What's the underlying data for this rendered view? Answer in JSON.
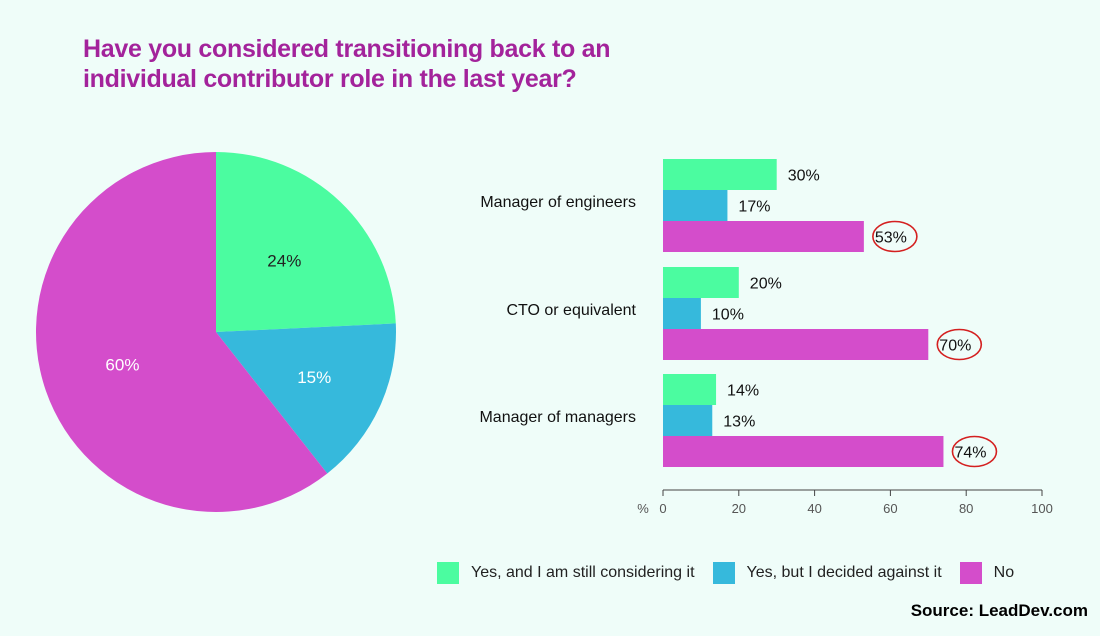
{
  "title": "Have you considered transitioning back to an individual contributor role in the last year?",
  "colors": {
    "yes_considering": "#4bfca0",
    "yes_decided_against": "#36b9dc",
    "no": "#d44dcb",
    "title": "#a3239b",
    "highlight_ring": "#d42020"
  },
  "legend": [
    {
      "label": "Yes, and I am still considering it",
      "color": "#4bfca0"
    },
    {
      "label": "Yes, but I decided against it",
      "color": "#36b9dc"
    },
    {
      "label": "No",
      "color": "#d44dcb"
    }
  ],
  "source": "Source: LeadDev.com",
  "chart_data": [
    {
      "type": "pie",
      "labels": [
        "Yes, and I am still considering it",
        "Yes, but I decided against it",
        "No"
      ],
      "values": [
        24,
        15,
        60
      ],
      "value_labels": [
        "24%",
        "15%",
        "60%"
      ]
    },
    {
      "type": "bar",
      "orientation": "horizontal",
      "categories": [
        "Manager of engineers",
        "CTO or equivalent",
        "Manager of managers"
      ],
      "series": [
        {
          "name": "Yes, and I am still considering it",
          "values": [
            30,
            20,
            14
          ],
          "labels": [
            "30%",
            "20%",
            "14%"
          ]
        },
        {
          "name": "Yes, but I decided against it",
          "values": [
            17,
            10,
            13
          ],
          "labels": [
            "17%",
            "10%",
            "13%"
          ]
        },
        {
          "name": "No",
          "values": [
            53,
            70,
            74
          ],
          "labels": [
            "53%",
            "70%",
            "74%"
          ]
        }
      ],
      "xlabel": "%",
      "xlim": [
        0,
        100
      ],
      "xticks": [
        0,
        20,
        40,
        60,
        80,
        100
      ],
      "highlighted_series": "No"
    }
  ]
}
